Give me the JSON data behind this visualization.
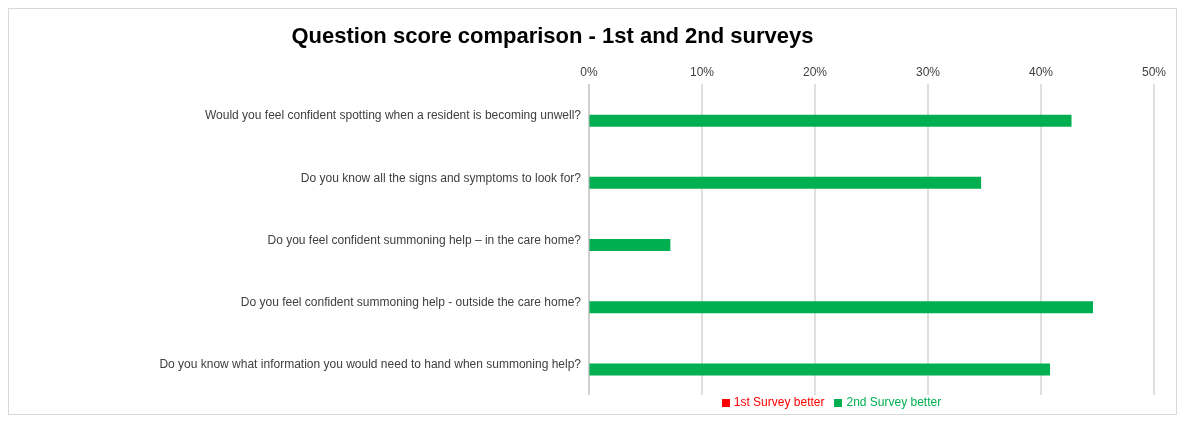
{
  "chart_data": {
    "type": "bar",
    "orientation": "horizontal",
    "title": "Question score comparison - 1st and 2nd surveys",
    "categories": [
      "Would you feel confident spotting when a resident is becoming unwell?",
      "Do you know all the signs and symptoms to look for?",
      "Do you feel confident summoning help – in the care home?",
      "Do you feel confident summoning help  - outside the care home?",
      "Do you know what information you would need to hand when summoning help?"
    ],
    "series": [
      {
        "name": "1st Survey better",
        "color": "#ff0000",
        "values": [
          null,
          null,
          null,
          null,
          null
        ]
      },
      {
        "name": "2nd Survey better",
        "color": "#00b050",
        "values": [
          42.7,
          34.7,
          7.2,
          44.6,
          40.8
        ]
      }
    ],
    "xlim": [
      0,
      50
    ],
    "xticks": [
      {
        "value": 0,
        "label": "0%"
      },
      {
        "value": 10,
        "label": "10%"
      },
      {
        "value": 20,
        "label": "20%"
      },
      {
        "value": 30,
        "label": "30%"
      },
      {
        "value": 40,
        "label": "40%"
      },
      {
        "value": 50,
        "label": "50%"
      }
    ],
    "grid": "x",
    "legend": "bottom"
  }
}
